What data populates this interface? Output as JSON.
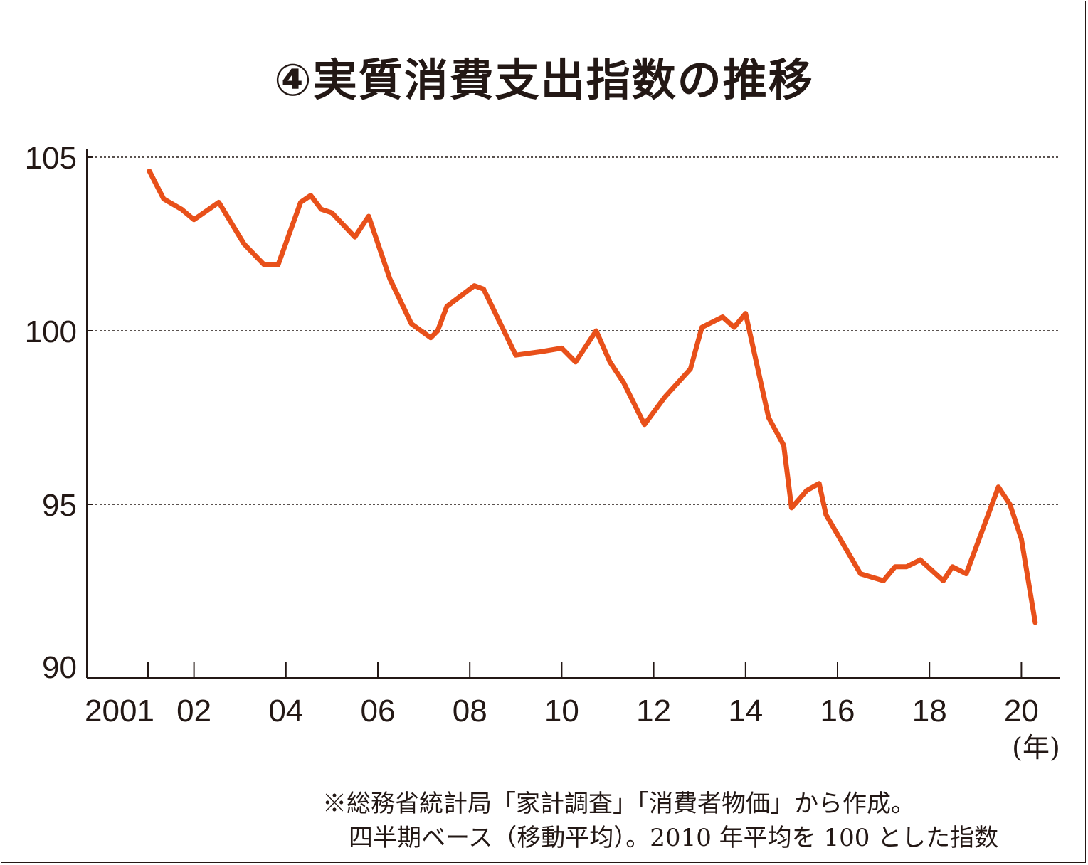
{
  "chart_data": {
    "type": "line",
    "title": "④実質消費支出指数の推移",
    "xlabel": "(年)",
    "ylabel": "",
    "ylim": [
      90,
      105
    ],
    "xlim": [
      2000.7,
      2021.0
    ],
    "yticks": [
      {
        "value": 105,
        "label": "105"
      },
      {
        "value": 100,
        "label": "100"
      },
      {
        "value": 95,
        "label": "95"
      },
      {
        "value": 90,
        "label": "90"
      }
    ],
    "xticks": [
      {
        "value": 2001,
        "label": "2001"
      },
      {
        "value": 2002,
        "label": "02"
      },
      {
        "value": 2004,
        "label": "04"
      },
      {
        "value": 2006,
        "label": "06"
      },
      {
        "value": 2008,
        "label": "08"
      },
      {
        "value": 2010,
        "label": "10"
      },
      {
        "value": 2012,
        "label": "12"
      },
      {
        "value": 2014,
        "label": "14"
      },
      {
        "value": 2016,
        "label": "16"
      },
      {
        "value": 2018,
        "label": "18"
      },
      {
        "value": 2020,
        "label": "20"
      }
    ],
    "grid": "horizontal dotted at 95, 100, 105",
    "series": [
      {
        "name": "実質消費支出指数",
        "color": "#E8501A",
        "x": [
          2001.03,
          2001.34,
          2001.73,
          2002.0,
          2002.54,
          2003.09,
          2003.53,
          2003.83,
          2004.32,
          2004.54,
          2004.77,
          2005.0,
          2005.5,
          2005.8,
          2006.26,
          2006.73,
          2007.15,
          2007.3,
          2007.5,
          2008.1,
          2008.3,
          2009.0,
          2009.55,
          2010.0,
          2010.3,
          2010.75,
          2011.05,
          2011.35,
          2011.8,
          2012.25,
          2012.8,
          2013.05,
          2013.5,
          2013.75,
          2014.0,
          2014.5,
          2014.83,
          2015.0,
          2015.33,
          2015.6,
          2015.75,
          2016.5,
          2017.0,
          2017.25,
          2017.5,
          2017.8,
          2018.3,
          2018.5,
          2018.8,
          2019.5,
          2019.75,
          2020.0,
          2020.3
        ],
        "values": [
          104.6,
          103.8,
          103.5,
          103.2,
          103.7,
          102.5,
          101.9,
          101.9,
          103.7,
          103.9,
          103.5,
          103.4,
          102.7,
          103.3,
          101.5,
          100.2,
          99.8,
          100.0,
          100.7,
          101.3,
          101.2,
          99.3,
          99.4,
          99.5,
          99.1,
          100.0,
          99.1,
          98.5,
          97.3,
          98.1,
          98.9,
          100.1,
          100.4,
          100.1,
          100.5,
          97.5,
          96.7,
          94.9,
          95.4,
          95.6,
          94.7,
          93.0,
          92.8,
          93.2,
          93.2,
          93.4,
          92.8,
          93.2,
          93.0,
          95.5,
          95.0,
          94.0,
          91.6
        ]
      }
    ],
    "notes": [
      "※総務省統計局「家計調査」「消費者物価」から作成。",
      "四半期ベース（移動平均）。2010 年平均を 100 とした指数"
    ]
  }
}
